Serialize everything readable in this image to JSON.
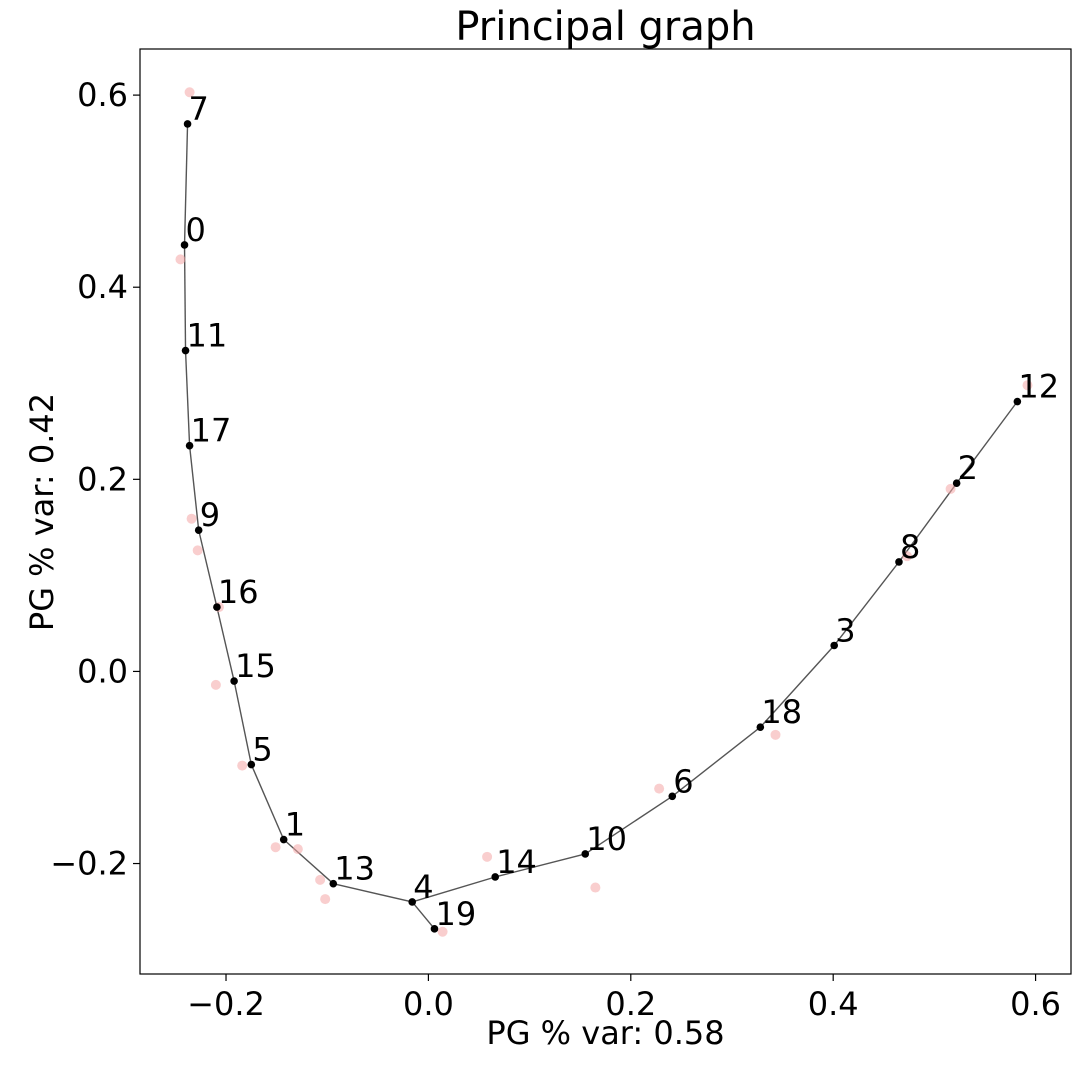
{
  "chart_data": {
    "type": "scatter",
    "title": "Principal graph",
    "xlabel": "PG % var: 0.58",
    "ylabel": "PG % var: 0.42",
    "xlim": [
      -0.285,
      0.635
    ],
    "ylim": [
      -0.315,
      0.648
    ],
    "xticks": [
      {
        "value": -0.2,
        "label": "−0.2"
      },
      {
        "value": 0.0,
        "label": "0.0"
      },
      {
        "value": 0.2,
        "label": "0.2"
      },
      {
        "value": 0.4,
        "label": "0.4"
      },
      {
        "value": 0.6,
        "label": "0.6"
      }
    ],
    "yticks": [
      {
        "value": -0.2,
        "label": "−0.2"
      },
      {
        "value": 0.0,
        "label": "0.0"
      },
      {
        "value": 0.2,
        "label": "0.2"
      },
      {
        "value": 0.4,
        "label": "0.4"
      },
      {
        "value": 0.6,
        "label": "0.6"
      }
    ],
    "grid": false,
    "colors": {
      "nodes": "#000000",
      "edges": "#555555",
      "samples": "#f4a6a6"
    },
    "nodes": [
      {
        "id": "0",
        "x": -0.241,
        "y": 0.444
      },
      {
        "id": "1",
        "x": -0.143,
        "y": -0.175
      },
      {
        "id": "2",
        "x": 0.522,
        "y": 0.196
      },
      {
        "id": "3",
        "x": 0.401,
        "y": 0.027
      },
      {
        "id": "4",
        "x": -0.016,
        "y": -0.24
      },
      {
        "id": "5",
        "x": -0.175,
        "y": -0.097
      },
      {
        "id": "6",
        "x": 0.241,
        "y": -0.13
      },
      {
        "id": "7",
        "x": -0.238,
        "y": 0.57
      },
      {
        "id": "8",
        "x": 0.465,
        "y": 0.114
      },
      {
        "id": "9",
        "x": -0.227,
        "y": 0.147
      },
      {
        "id": "10",
        "x": 0.155,
        "y": -0.19
      },
      {
        "id": "11",
        "x": -0.24,
        "y": 0.334
      },
      {
        "id": "12",
        "x": 0.582,
        "y": 0.281
      },
      {
        "id": "13",
        "x": -0.094,
        "y": -0.221
      },
      {
        "id": "14",
        "x": 0.066,
        "y": -0.214
      },
      {
        "id": "15",
        "x": -0.192,
        "y": -0.01
      },
      {
        "id": "16",
        "x": -0.209,
        "y": 0.067
      },
      {
        "id": "17",
        "x": -0.236,
        "y": 0.235
      },
      {
        "id": "18",
        "x": 0.328,
        "y": -0.058
      },
      {
        "id": "19",
        "x": 0.006,
        "y": -0.268
      }
    ],
    "edges": [
      [
        "7",
        "0"
      ],
      [
        "0",
        "11"
      ],
      [
        "11",
        "17"
      ],
      [
        "17",
        "9"
      ],
      [
        "9",
        "16"
      ],
      [
        "16",
        "15"
      ],
      [
        "15",
        "5"
      ],
      [
        "5",
        "1"
      ],
      [
        "1",
        "13"
      ],
      [
        "13",
        "4"
      ],
      [
        "4",
        "19"
      ],
      [
        "4",
        "14"
      ],
      [
        "14",
        "10"
      ],
      [
        "10",
        "6"
      ],
      [
        "6",
        "18"
      ],
      [
        "18",
        "3"
      ],
      [
        "3",
        "8"
      ],
      [
        "8",
        "2"
      ],
      [
        "2",
        "12"
      ]
    ],
    "samples": [
      {
        "x": -0.236,
        "y": 0.603
      },
      {
        "x": -0.245,
        "y": 0.429
      },
      {
        "x": -0.234,
        "y": 0.159
      },
      {
        "x": -0.228,
        "y": 0.126
      },
      {
        "x": -0.207,
        "y": 0.067
      },
      {
        "x": -0.21,
        "y": -0.014
      },
      {
        "x": -0.184,
        "y": -0.098
      },
      {
        "x": -0.151,
        "y": -0.183
      },
      {
        "x": -0.129,
        "y": -0.185
      },
      {
        "x": -0.107,
        "y": -0.217
      },
      {
        "x": -0.102,
        "y": -0.237
      },
      {
        "x": 0.014,
        "y": -0.271
      },
      {
        "x": 0.058,
        "y": -0.193
      },
      {
        "x": 0.165,
        "y": -0.225
      },
      {
        "x": 0.228,
        "y": -0.122
      },
      {
        "x": 0.343,
        "y": -0.066
      },
      {
        "x": 0.473,
        "y": 0.12
      },
      {
        "x": 0.516,
        "y": 0.19
      },
      {
        "x": 0.592,
        "y": 0.298
      }
    ]
  }
}
